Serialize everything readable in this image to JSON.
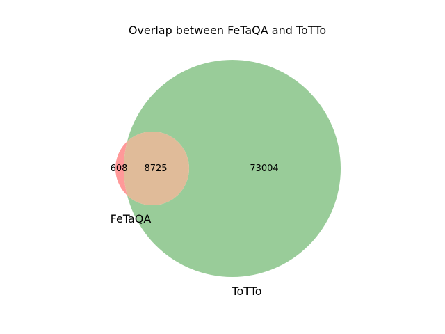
{
  "title": "Overlap between FeTaQA and ToTTo",
  "sets": [
    {
      "name": "FeTaQA",
      "only_count": "608",
      "color": "#ff9999"
    },
    {
      "name": "ToTTo",
      "only_count": "73004",
      "color": "#99cc99"
    }
  ],
  "intersection": {
    "count": "8725",
    "color": "#e0bb99"
  }
}
